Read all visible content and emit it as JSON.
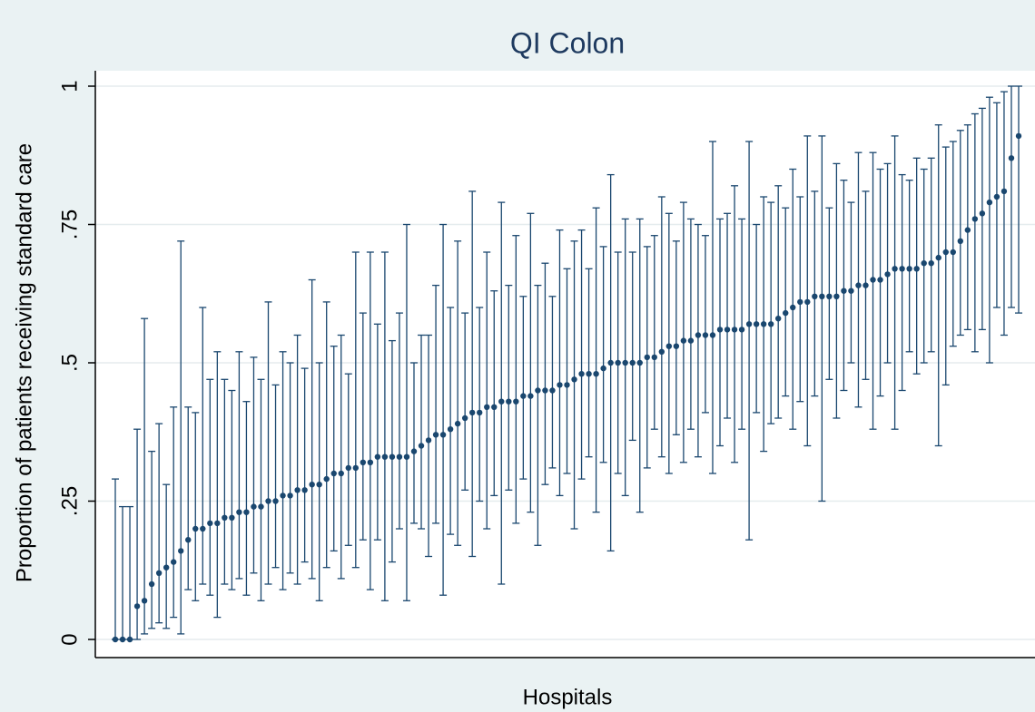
{
  "chart_data": {
    "type": "caterpillar",
    "title": "QI Colon",
    "x_label": "Hospitals",
    "y_label": "Proportion of patients receiving standard care",
    "color": "#1a476f",
    "grid": true,
    "ylim": [
      0,
      1
    ],
    "yticks": [
      {
        "value": 0,
        "label": "0"
      },
      {
        "value": 0.25,
        "label": ".25"
      },
      {
        "value": 0.5,
        "label": ".5"
      },
      {
        "value": 0.75,
        "label": ".75"
      },
      {
        "value": 1,
        "label": "1"
      }
    ],
    "values": [
      0,
      0,
      0,
      0.06,
      0.07,
      0.1,
      0.12,
      0.13,
      0.14,
      0.16,
      0.18,
      0.2,
      0.2,
      0.21,
      0.21,
      0.22,
      0.22,
      0.23,
      0.23,
      0.24,
      0.24,
      0.25,
      0.25,
      0.26,
      0.26,
      0.27,
      0.27,
      0.28,
      0.28,
      0.29,
      0.3,
      0.3,
      0.31,
      0.31,
      0.32,
      0.32,
      0.33,
      0.33,
      0.33,
      0.33,
      0.33,
      0.34,
      0.35,
      0.36,
      0.37,
      0.37,
      0.38,
      0.39,
      0.4,
      0.41,
      0.41,
      0.42,
      0.42,
      0.43,
      0.43,
      0.43,
      0.44,
      0.44,
      0.45,
      0.45,
      0.45,
      0.46,
      0.46,
      0.47,
      0.48,
      0.48,
      0.48,
      0.49,
      0.5,
      0.5,
      0.5,
      0.5,
      0.5,
      0.51,
      0.51,
      0.52,
      0.53,
      0.53,
      0.54,
      0.54,
      0.55,
      0.55,
      0.55,
      0.56,
      0.56,
      0.56,
      0.56,
      0.57,
      0.57,
      0.57,
      0.57,
      0.58,
      0.59,
      0.6,
      0.61,
      0.61,
      0.62,
      0.62,
      0.62,
      0.62,
      0.63,
      0.63,
      0.64,
      0.64,
      0.65,
      0.65,
      0.66,
      0.67,
      0.67,
      0.67,
      0.67,
      0.68,
      0.68,
      0.69,
      0.7,
      0.7,
      0.72,
      0.74,
      0.76,
      0.77,
      0.79,
      0.8,
      0.81,
      0.87,
      0.91
    ],
    "lower": [
      0,
      0,
      0,
      0,
      0.01,
      0.02,
      0.03,
      0.02,
      0.04,
      0.01,
      0.09,
      0.07,
      0.1,
      0.08,
      0.04,
      0.1,
      0.09,
      0.11,
      0.08,
      0.12,
      0.07,
      0.1,
      0.13,
      0.09,
      0.12,
      0.1,
      0.14,
      0.11,
      0.07,
      0.13,
      0.16,
      0.11,
      0.17,
      0.13,
      0.18,
      0.09,
      0.18,
      0.07,
      0.14,
      0.2,
      0.07,
      0.21,
      0.2,
      0.15,
      0.21,
      0.08,
      0.19,
      0.17,
      0.27,
      0.15,
      0.25,
      0.2,
      0.26,
      0.1,
      0.27,
      0.21,
      0.29,
      0.23,
      0.17,
      0.28,
      0.31,
      0.26,
      0.3,
      0.2,
      0.29,
      0.33,
      0.23,
      0.32,
      0.16,
      0.3,
      0.26,
      0.36,
      0.23,
      0.31,
      0.38,
      0.33,
      0.3,
      0.37,
      0.32,
      0.38,
      0.33,
      0.41,
      0.3,
      0.35,
      0.4,
      0.32,
      0.38,
      0.18,
      0.41,
      0.34,
      0.39,
      0.4,
      0.44,
      0.38,
      0.43,
      0.35,
      0.44,
      0.25,
      0.47,
      0.4,
      0.45,
      0.5,
      0.42,
      0.47,
      0.38,
      0.44,
      0.5,
      0.38,
      0.45,
      0.52,
      0.48,
      0.5,
      0.52,
      0.35,
      0.46,
      0.53,
      0.55,
      0.56,
      0.52,
      0.56,
      0.5,
      0.6,
      0.55,
      0.6,
      0.59
    ],
    "upper": [
      0.29,
      0.24,
      0.24,
      0.38,
      0.58,
      0.34,
      0.39,
      0.28,
      0.42,
      0.72,
      0.42,
      0.41,
      0.6,
      0.47,
      0.52,
      0.47,
      0.45,
      0.52,
      0.43,
      0.51,
      0.47,
      0.61,
      0.46,
      0.52,
      0.5,
      0.55,
      0.49,
      0.65,
      0.5,
      0.61,
      0.53,
      0.55,
      0.48,
      0.7,
      0.59,
      0.7,
      0.57,
      0.7,
      0.54,
      0.59,
      0.75,
      0.5,
      0.55,
      0.55,
      0.64,
      0.75,
      0.6,
      0.72,
      0.59,
      0.81,
      0.6,
      0.7,
      0.63,
      0.79,
      0.64,
      0.73,
      0.62,
      0.77,
      0.64,
      0.68,
      0.62,
      0.74,
      0.67,
      0.72,
      0.74,
      0.67,
      0.78,
      0.71,
      0.84,
      0.7,
      0.76,
      0.7,
      0.76,
      0.71,
      0.73,
      0.8,
      0.77,
      0.72,
      0.79,
      0.76,
      0.75,
      0.73,
      0.9,
      0.76,
      0.77,
      0.82,
      0.76,
      0.9,
      0.75,
      0.8,
      0.79,
      0.82,
      0.78,
      0.85,
      0.8,
      0.91,
      0.81,
      0.91,
      0.78,
      0.86,
      0.83,
      0.79,
      0.88,
      0.81,
      0.88,
      0.85,
      0.86,
      0.91,
      0.84,
      0.83,
      0.87,
      0.85,
      0.87,
      0.93,
      0.89,
      0.9,
      0.92,
      0.93,
      0.95,
      0.96,
      0.98,
      0.97,
      0.99,
      1,
      1
    ]
  }
}
